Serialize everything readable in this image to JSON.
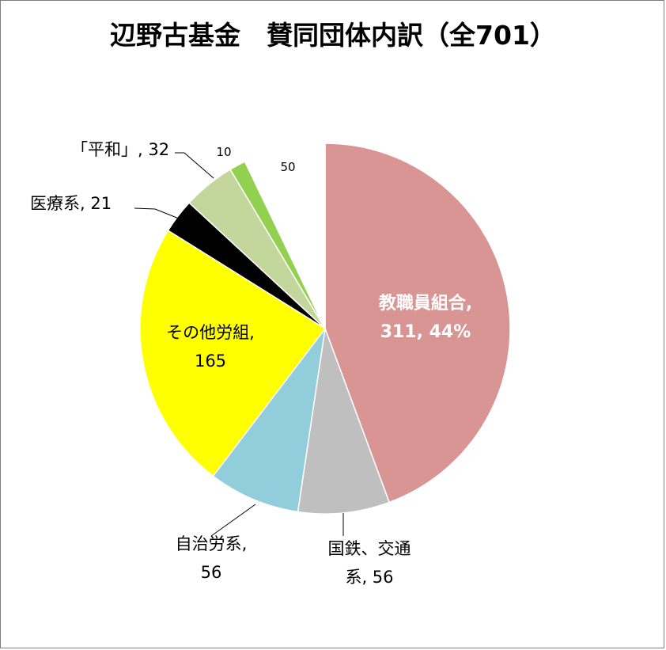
{
  "chart_data": {
    "type": "pie",
    "title": "辺野古基金　賛同団体内訳（全701）",
    "total": 701,
    "start_angle_deg": 0,
    "direction": "clockwise",
    "slices": [
      {
        "label": "教職員組合",
        "value": 311,
        "percent": "44%",
        "color": "#d99594",
        "text_lines": [
          "教職員組合,",
          "311, 44%"
        ]
      },
      {
        "label": "国鉄、交通系",
        "value": 56,
        "color": "#bfbfbf",
        "text_lines": [
          "国鉄、交通",
          "系, 56"
        ]
      },
      {
        "label": "自治労系",
        "value": 56,
        "color": "#92cddc",
        "text_lines": [
          "自治労系,",
          "56"
        ]
      },
      {
        "label": "その他労組",
        "value": 165,
        "color": "#ffff00",
        "text_lines": [
          "その他労組,",
          "165"
        ]
      },
      {
        "label": "医療系",
        "value": 21,
        "color": "#000000",
        "text_lines": [
          "医療系, 21"
        ]
      },
      {
        "label": "「平和」",
        "value": 32,
        "color": "#c3d69b",
        "text_lines": [
          "「平和」, 32"
        ]
      },
      {
        "label": "",
        "value": 10,
        "color": "#92d050",
        "text_lines": [
          "10"
        ]
      },
      {
        "label": "",
        "value": 50,
        "color": "#ffffff",
        "text_lines": [
          "50"
        ]
      }
    ]
  }
}
